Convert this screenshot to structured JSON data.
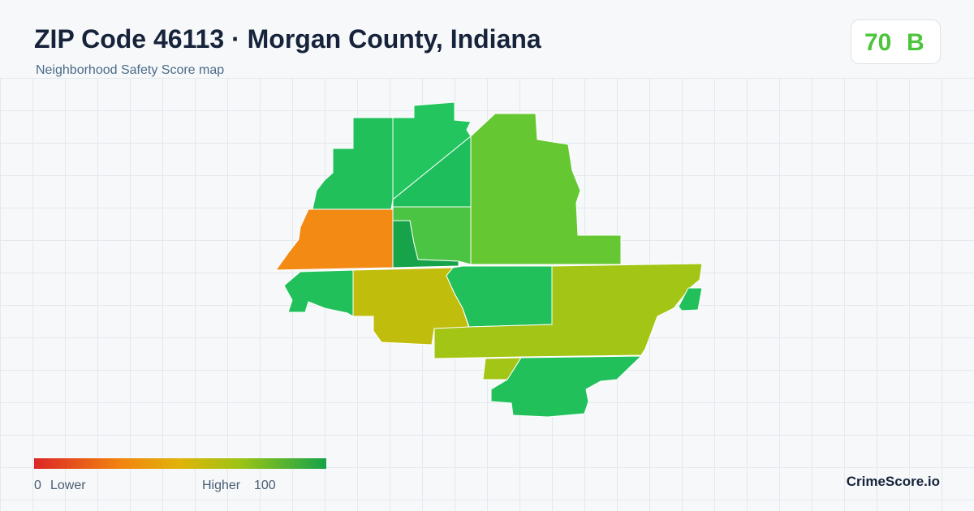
{
  "header": {
    "title": "ZIP Code 46113 · Morgan County, Indiana",
    "subtitle": "Neighborhood Safety Score map"
  },
  "score": {
    "value": "70",
    "grade": "B"
  },
  "legend": {
    "min": "0",
    "min_label": "Lower",
    "max_label": "Higher",
    "max": "100"
  },
  "brand": "CrimeScore.io"
}
